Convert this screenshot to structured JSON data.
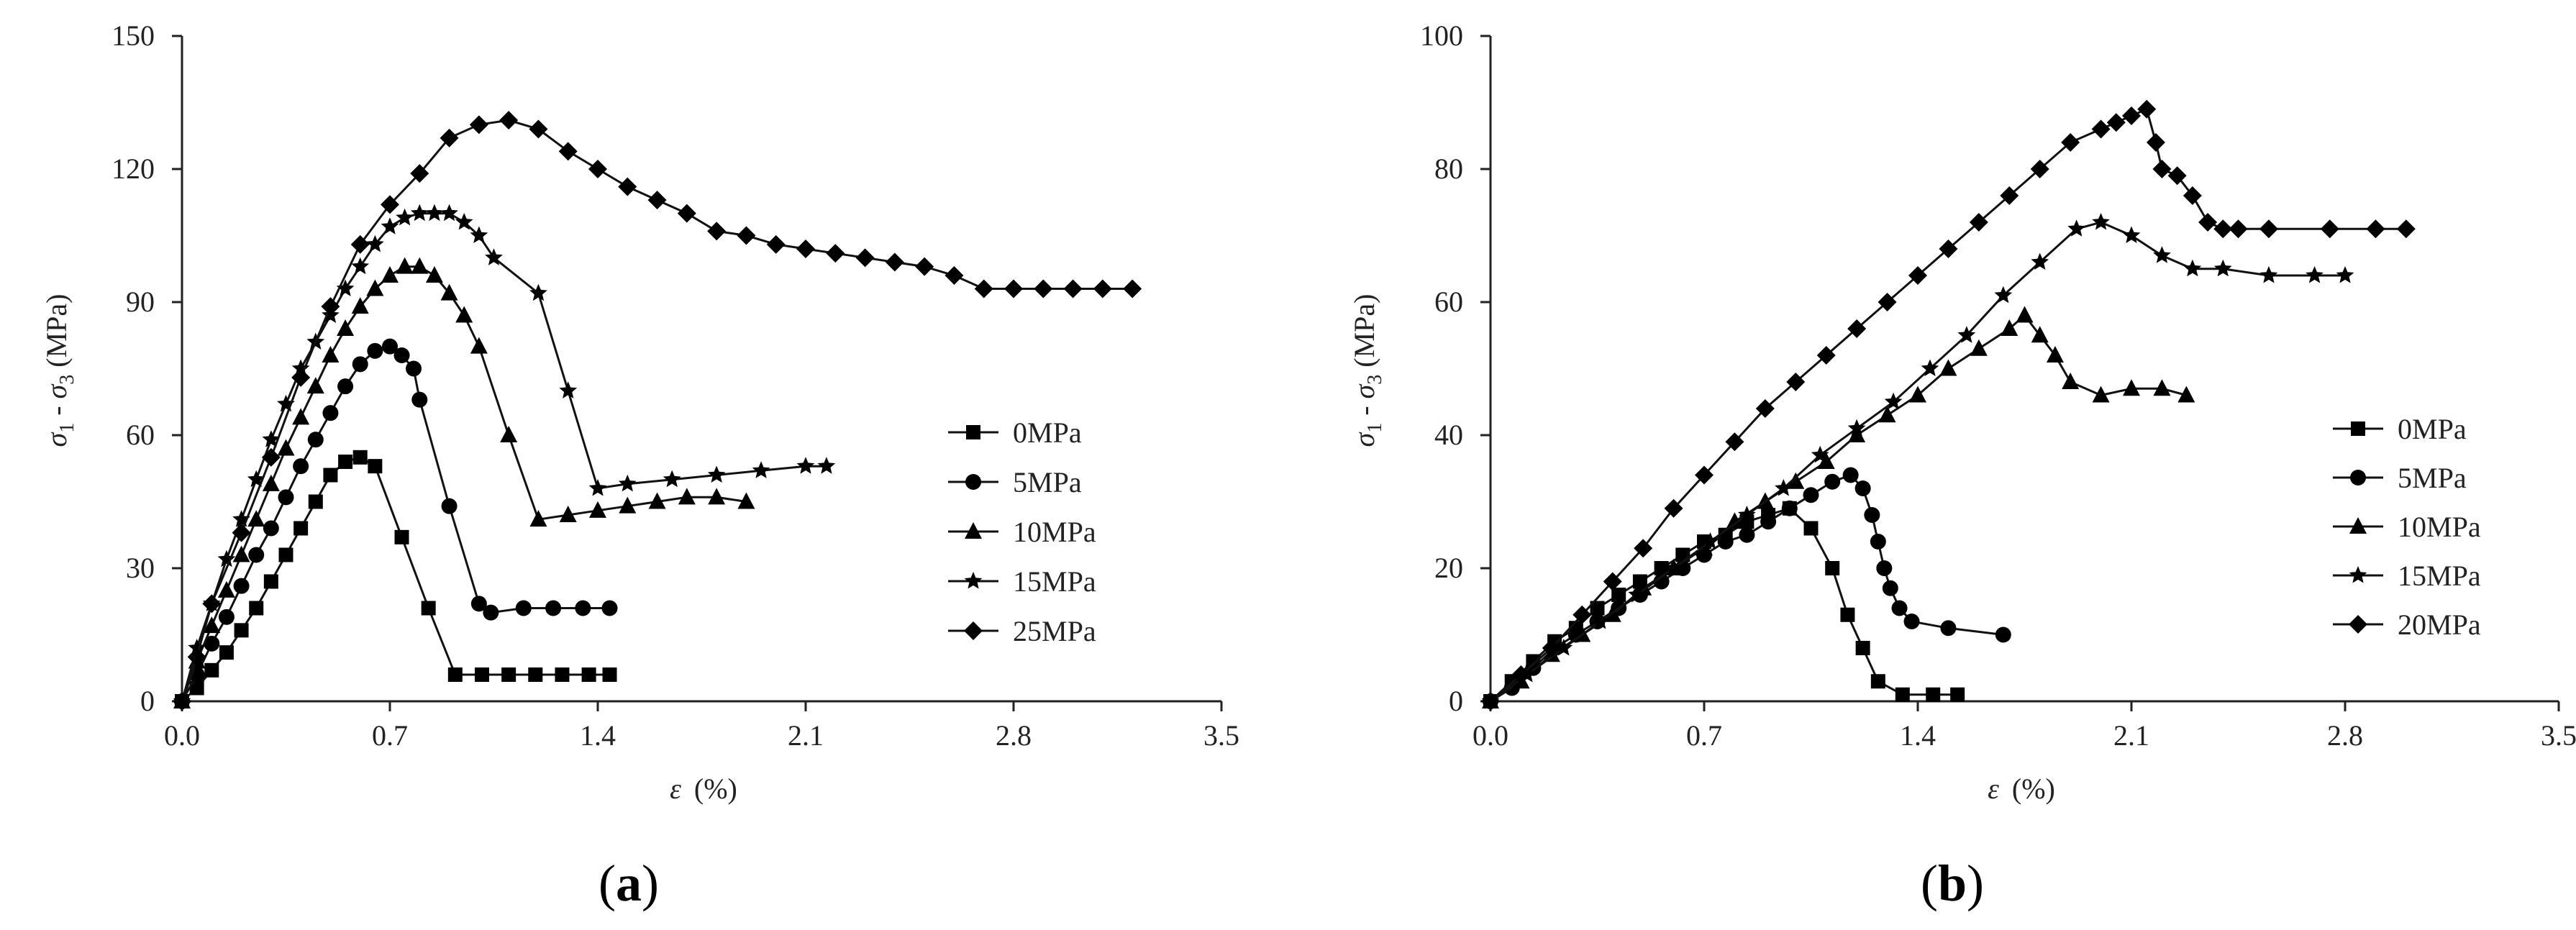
{
  "chart_data": [
    {
      "type": "line",
      "panel_label": "(a)",
      "panel_open": "(",
      "panel_letter": "a",
      "panel_close": ")",
      "xlabel_symbol": "ε",
      "xlabel_unit": "(%)",
      "ylabel": "σ1 - σ3 (MPa)",
      "ylabel_parts": {
        "s1": "σ",
        "sub1": "1",
        "dash": " - ",
        "s3": "σ",
        "sub3": "3",
        "unit": " (MPa)"
      },
      "xlim": [
        0,
        3.5
      ],
      "ylim": [
        0,
        150
      ],
      "xticks": [
        "0.0",
        "0.7",
        "1.4",
        "2.1",
        "2.8",
        "3.5"
      ],
      "yticks": [
        "0",
        "30",
        "60",
        "90",
        "120",
        "150"
      ],
      "series": [
        {
          "name": "0MPa",
          "marker": "square",
          "x": [
            0,
            0.05,
            0.1,
            0.15,
            0.2,
            0.25,
            0.3,
            0.35,
            0.4,
            0.45,
            0.5,
            0.55,
            0.6,
            0.65,
            0.74,
            0.83,
            0.92,
            1.01,
            1.1,
            1.19,
            1.28,
            1.37,
            1.44
          ],
          "y": [
            0,
            3,
            7,
            11,
            16,
            21,
            27,
            33,
            39,
            45,
            51,
            54,
            55,
            53,
            37,
            21,
            6,
            6,
            6,
            6,
            6,
            6,
            6
          ]
        },
        {
          "name": "5MPa",
          "marker": "circle",
          "x": [
            0,
            0.05,
            0.1,
            0.15,
            0.2,
            0.25,
            0.3,
            0.35,
            0.4,
            0.45,
            0.5,
            0.55,
            0.6,
            0.65,
            0.7,
            0.74,
            0.78,
            0.8,
            0.9,
            1.0,
            1.04,
            1.15,
            1.25,
            1.35,
            1.44
          ],
          "y": [
            0,
            6,
            13,
            19,
            26,
            33,
            39,
            46,
            53,
            59,
            65,
            71,
            76,
            79,
            80,
            78,
            75,
            68,
            44,
            22,
            20,
            21,
            21,
            21,
            21
          ]
        },
        {
          "name": "10MPa",
          "marker": "triangle",
          "x": [
            0,
            0.05,
            0.1,
            0.15,
            0.2,
            0.25,
            0.3,
            0.35,
            0.4,
            0.45,
            0.5,
            0.55,
            0.6,
            0.65,
            0.7,
            0.75,
            0.8,
            0.85,
            0.9,
            0.95,
            1.0,
            1.1,
            1.2,
            1.3,
            1.4,
            1.5,
            1.6,
            1.7,
            1.8,
            1.9
          ],
          "y": [
            0,
            9,
            17,
            25,
            33,
            41,
            49,
            57,
            64,
            71,
            78,
            84,
            89,
            93,
            96,
            98,
            98,
            96,
            92,
            87,
            80,
            60,
            41,
            42,
            43,
            44,
            45,
            46,
            46,
            45
          ]
        },
        {
          "name": "15MPa",
          "marker": "star",
          "x": [
            0,
            0.05,
            0.1,
            0.15,
            0.2,
            0.25,
            0.3,
            0.35,
            0.4,
            0.45,
            0.5,
            0.55,
            0.6,
            0.65,
            0.7,
            0.75,
            0.8,
            0.85,
            0.9,
            0.95,
            1.0,
            1.05,
            1.2,
            1.3,
            1.4,
            1.5,
            1.65,
            1.8,
            1.95,
            2.1,
            2.17
          ],
          "y": [
            0,
            12,
            22,
            32,
            41,
            50,
            59,
            67,
            75,
            81,
            87,
            93,
            98,
            103,
            107,
            109,
            110,
            110,
            110,
            108,
            105,
            100,
            92,
            70,
            48,
            49,
            50,
            51,
            52,
            53,
            53
          ]
        },
        {
          "name": "25MPa",
          "marker": "diamond",
          "x": [
            0,
            0.05,
            0.1,
            0.2,
            0.3,
            0.4,
            0.5,
            0.6,
            0.7,
            0.8,
            0.9,
            1.0,
            1.1,
            1.2,
            1.3,
            1.4,
            1.5,
            1.6,
            1.7,
            1.8,
            1.9,
            2.0,
            2.1,
            2.2,
            2.3,
            2.4,
            2.5,
            2.6,
            2.7,
            2.8,
            2.9,
            3.0,
            3.1,
            3.2
          ],
          "y": [
            0,
            10,
            22,
            38,
            55,
            73,
            89,
            103,
            112,
            119,
            127,
            130,
            131,
            129,
            124,
            120,
            116,
            113,
            110,
            106,
            105,
            103,
            102,
            101,
            100,
            99,
            98,
            96,
            93,
            93,
            93,
            93,
            93,
            93
          ]
        }
      ]
    },
    {
      "type": "line",
      "panel_label": "(b)",
      "panel_open": "(",
      "panel_letter": "b",
      "panel_close": ")",
      "xlabel_symbol": "ε",
      "xlabel_unit": "(%)",
      "ylabel": "σ1 - σ3 (MPa)",
      "ylabel_parts": {
        "s1": "σ",
        "sub1": "1",
        "dash": " - ",
        "s3": "σ",
        "sub3": "3",
        "unit": " (MPa)"
      },
      "xlim": [
        0,
        3.5
      ],
      "ylim": [
        0,
        100
      ],
      "xticks": [
        "0.0",
        "0.7",
        "1.4",
        "2.1",
        "2.8",
        "3.5"
      ],
      "yticks": [
        "0",
        "20",
        "40",
        "60",
        "80",
        "100"
      ],
      "series": [
        {
          "name": "0MPa",
          "marker": "square",
          "x": [
            0,
            0.07,
            0.14,
            0.21,
            0.28,
            0.35,
            0.42,
            0.49,
            0.56,
            0.63,
            0.7,
            0.77,
            0.84,
            0.91,
            0.98,
            1.05,
            1.12,
            1.17,
            1.22,
            1.27,
            1.35,
            1.45,
            1.53
          ],
          "y": [
            0,
            3,
            6,
            9,
            11,
            14,
            16,
            18,
            20,
            22,
            24,
            25,
            27,
            28,
            29,
            26,
            20,
            13,
            8,
            3,
            1,
            1,
            1
          ]
        },
        {
          "name": "5MPa",
          "marker": "circle",
          "x": [
            0,
            0.07,
            0.14,
            0.21,
            0.28,
            0.35,
            0.42,
            0.49,
            0.56,
            0.63,
            0.7,
            0.77,
            0.84,
            0.91,
            0.98,
            1.05,
            1.12,
            1.18,
            1.22,
            1.25,
            1.27,
            1.29,
            1.31,
            1.34,
            1.38,
            1.5,
            1.68
          ],
          "y": [
            0,
            2,
            5,
            8,
            10,
            12,
            14,
            16,
            18,
            20,
            22,
            24,
            25,
            27,
            29,
            31,
            33,
            34,
            32,
            28,
            24,
            20,
            17,
            14,
            12,
            11,
            10
          ]
        },
        {
          "name": "10MPa",
          "marker": "triangle",
          "x": [
            0,
            0.1,
            0.2,
            0.3,
            0.4,
            0.5,
            0.6,
            0.7,
            0.8,
            0.9,
            1.0,
            1.1,
            1.2,
            1.3,
            1.4,
            1.5,
            1.6,
            1.7,
            1.75,
            1.8,
            1.85,
            1.9,
            2.0,
            2.1,
            2.2,
            2.28
          ],
          "y": [
            0,
            3,
            7,
            10,
            13,
            17,
            20,
            23,
            27,
            30,
            33,
            36,
            40,
            43,
            46,
            50,
            53,
            56,
            58,
            55,
            52,
            48,
            46,
            47,
            47,
            46
          ]
        },
        {
          "name": "15MPa",
          "marker": "star",
          "x": [
            0,
            0.12,
            0.24,
            0.36,
            0.48,
            0.6,
            0.72,
            0.84,
            0.96,
            1.08,
            1.2,
            1.32,
            1.44,
            1.56,
            1.68,
            1.8,
            1.92,
            2.0,
            2.1,
            2.2,
            2.3,
            2.4,
            2.55,
            2.7,
            2.8
          ],
          "y": [
            0,
            4,
            8,
            12,
            16,
            20,
            24,
            28,
            32,
            37,
            41,
            45,
            50,
            55,
            61,
            66,
            71,
            72,
            70,
            67,
            65,
            65,
            64,
            64,
            64
          ]
        },
        {
          "name": "20MPa",
          "marker": "diamond",
          "x": [
            0,
            0.1,
            0.2,
            0.3,
            0.4,
            0.5,
            0.6,
            0.7,
            0.8,
            0.9,
            1.0,
            1.1,
            1.2,
            1.3,
            1.4,
            1.5,
            1.6,
            1.7,
            1.8,
            1.9,
            2.0,
            2.05,
            2.1,
            2.15,
            2.18,
            2.2,
            2.25,
            2.3,
            2.35,
            2.4,
            2.45,
            2.55,
            2.75,
            2.9,
            3.0
          ],
          "y": [
            0,
            4,
            8,
            13,
            18,
            23,
            29,
            34,
            39,
            44,
            48,
            52,
            56,
            60,
            64,
            68,
            72,
            76,
            80,
            84,
            86,
            87,
            88,
            89,
            84,
            80,
            79,
            76,
            72,
            71,
            71,
            71,
            71,
            71,
            71
          ]
        }
      ]
    }
  ]
}
